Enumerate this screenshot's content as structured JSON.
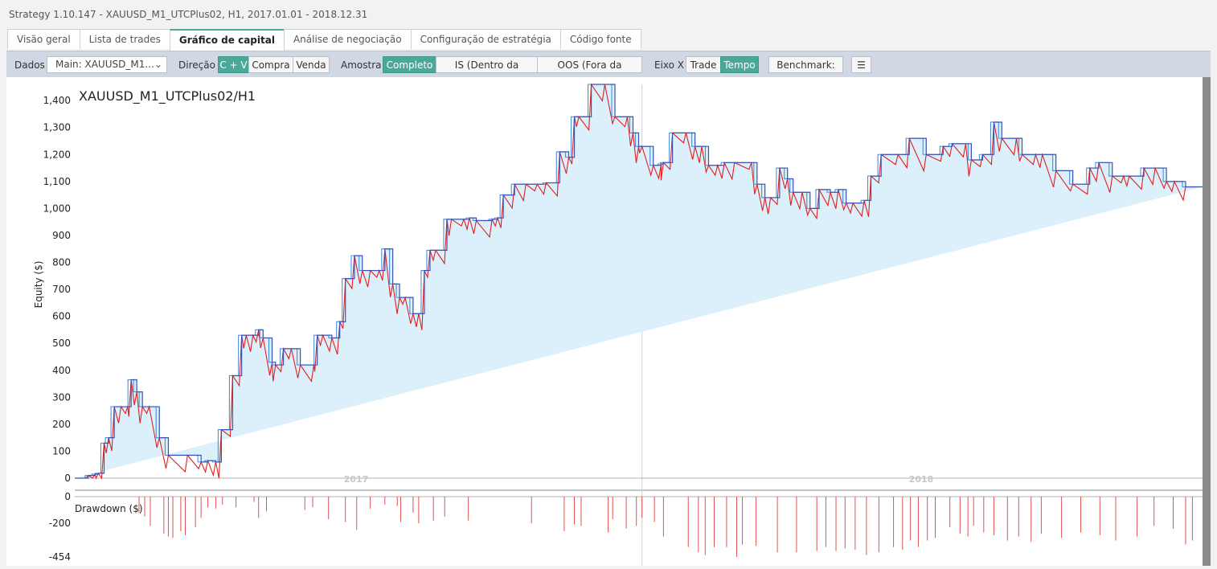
{
  "window": {
    "title": "Strategy 1.10.147 - XAUUSD_M1_UTCPlus02, H1, 2017.01.01 - 2018.12.31"
  },
  "tabs": [
    "Visão geral",
    "Lista de trades",
    "Gráfico de capital",
    "Análise de negociação",
    "Configuração de estratégia",
    "Código fonte"
  ],
  "active_tab": "Gráfico de capital",
  "toolbar": {
    "data_label": "Dados",
    "data_value": "Main: XAUUSD_M1...",
    "direction_label": "Direção",
    "direction_options": [
      "C + V",
      "Compra",
      "Venda"
    ],
    "sample_label": "Amostra",
    "sample_options": [
      "Completo",
      "IS (Dentro da amostra)",
      "OOS (Fora da amostra)"
    ],
    "xaxis_label": "Eixo X",
    "xaxis_options": [
      "Trade",
      "Tempo"
    ],
    "benchmark": "Benchmark: off",
    "menu_icon": "hamburger-menu-icon"
  },
  "colors": {
    "accent": "#4aa89a",
    "equity_line": "#3a52b0",
    "bar_line": "#4a8fd6",
    "low_line": "#e02020",
    "fill": "#dbf0fb",
    "drawdown": "#e05050"
  },
  "chart_data": [
    {
      "type": "area",
      "title": "XAUUSD_M1_UTCPlus02/H1",
      "ylabel": "Equity ($)",
      "ylim": [
        0,
        1460
      ],
      "yticks": [
        "0",
        "100",
        "200",
        "300",
        "400",
        "500",
        "600",
        "700",
        "800",
        "900",
        "1,000",
        "1,100",
        "1,200",
        "1,300",
        "1,400"
      ],
      "x_labels": [
        "2017",
        "2018"
      ],
      "t": [
        0,
        0.012,
        0.018,
        0.021,
        0.026,
        0.03,
        0.035,
        0.041,
        0.047,
        0.05,
        0.055,
        0.06,
        0.066,
        0.075,
        0.083,
        0.1,
        0.112,
        0.118,
        0.125,
        0.13,
        0.14,
        0.148,
        0.152,
        0.158,
        0.163,
        0.167,
        0.175,
        0.178,
        0.185,
        0.192,
        0.2,
        0.212,
        0.215,
        0.22,
        0.228,
        0.235,
        0.24,
        0.248,
        0.255,
        0.262,
        0.27,
        0.275,
        0.282,
        0.288,
        0.293,
        0.3,
        0.305,
        0.31,
        0.315,
        0.32,
        0.33,
        0.334,
        0.345,
        0.35,
        0.356,
        0.37,
        0.375,
        0.38,
        0.39,
        0.4,
        0.41,
        0.418,
        0.43,
        0.438,
        0.443,
        0.447,
        0.458,
        0.47,
        0.479,
        0.49,
        0.495,
        0.5,
        0.503,
        0.513,
        0.52,
        0.522,
        0.53,
        0.542,
        0.55,
        0.556,
        0.562,
        0.57,
        0.576,
        0.585,
        0.6,
        0.605,
        0.612,
        0.617,
        0.625,
        0.632,
        0.637,
        0.645,
        0.652,
        0.66,
        0.67,
        0.677,
        0.684,
        0.69,
        0.7,
        0.706,
        0.715,
        0.73,
        0.74,
        0.755,
        0.77,
        0.778,
        0.79,
        0.795,
        0.805,
        0.815,
        0.822,
        0.835,
        0.84,
        0.852,
        0.858,
        0.87,
        0.885,
        0.9,
        0.908,
        0.92,
        0.93,
        0.935,
        0.948,
        0.958,
        0.968,
        0.975,
        0.985,
        1.0
      ],
      "equity": [
        0,
        10,
        15,
        18,
        130,
        150,
        265,
        265,
        265,
        365,
        320,
        265,
        265,
        150,
        85,
        85,
        60,
        65,
        60,
        180,
        380,
        530,
        530,
        530,
        550,
        520,
        430,
        420,
        480,
        480,
        420,
        420,
        530,
        530,
        520,
        580,
        740,
        825,
        770,
        770,
        770,
        850,
        720,
        670,
        670,
        610,
        610,
        770,
        845,
        845,
        960,
        960,
        960,
        965,
        955,
        960,
        965,
        1050,
        1090,
        1090,
        1090,
        1095,
        1210,
        1190,
        1340,
        1340,
        1460,
        1460,
        1340,
        1340,
        1280,
        1230,
        1230,
        1160,
        1165,
        1170,
        1280,
        1280,
        1230,
        1230,
        1160,
        1160,
        1170,
        1170,
        1170,
        1090,
        1040,
        1040,
        1150,
        1110,
        1060,
        1060,
        1000,
        1070,
        1060,
        1070,
        1020,
        1020,
        1030,
        1120,
        1200,
        1200,
        1260,
        1200,
        1230,
        1240,
        1240,
        1180,
        1200,
        1320,
        1260,
        1260,
        1200,
        1200,
        1200,
        1140,
        1090,
        1150,
        1170,
        1120,
        1120,
        1120,
        1150,
        1150,
        1100,
        1100,
        1080
      ]
    },
    {
      "type": "bar",
      "title": "",
      "ylabel": "Drawdown ($)",
      "ylim": [
        -454,
        0
      ],
      "yticks": [
        "0",
        "-200",
        "-454"
      ],
      "t": [
        0.057,
        0.062,
        0.067,
        0.079,
        0.083,
        0.087,
        0.094,
        0.098,
        0.107,
        0.112,
        0.118,
        0.125,
        0.131,
        0.143,
        0.159,
        0.163,
        0.17,
        0.204,
        0.211,
        0.225,
        0.24,
        0.25,
        0.262,
        0.275,
        0.286,
        0.289,
        0.3,
        0.305,
        0.318,
        0.328,
        0.349,
        0.405,
        0.434,
        0.443,
        0.449,
        0.473,
        0.477,
        0.489,
        0.498,
        0.503,
        0.514,
        0.522,
        0.544,
        0.553,
        0.559,
        0.567,
        0.578,
        0.587,
        0.592,
        0.604,
        0.623,
        0.64,
        0.658,
        0.666,
        0.675,
        0.683,
        0.692,
        0.702,
        0.713,
        0.726,
        0.734,
        0.741,
        0.748,
        0.756,
        0.763,
        0.776,
        0.785,
        0.792,
        0.797,
        0.806,
        0.815,
        0.827,
        0.837,
        0.848,
        0.857,
        0.875,
        0.892,
        0.909,
        0.923,
        0.942,
        0.957,
        0.974,
        0.985,
        0.991
      ],
      "values": [
        -120,
        -150,
        -220,
        -280,
        -300,
        -310,
        -260,
        -290,
        -230,
        -160,
        -80,
        -90,
        -60,
        -80,
        -40,
        -160,
        -110,
        -100,
        -80,
        -170,
        -190,
        -250,
        -90,
        -60,
        -70,
        -190,
        -120,
        -200,
        -180,
        -150,
        -180,
        -200,
        -260,
        -210,
        -220,
        -270,
        -170,
        -240,
        -220,
        -160,
        -190,
        -300,
        -380,
        -420,
        -440,
        -380,
        -380,
        -454,
        -360,
        -370,
        -420,
        -420,
        -410,
        -380,
        -410,
        -390,
        -400,
        -440,
        -420,
        -380,
        -400,
        -330,
        -380,
        -330,
        -310,
        -230,
        -280,
        -300,
        -220,
        -270,
        -290,
        -330,
        -300,
        -340,
        -280,
        -310,
        -270,
        -290,
        -330,
        -300,
        -220,
        -240,
        -360,
        -330
      ]
    }
  ]
}
